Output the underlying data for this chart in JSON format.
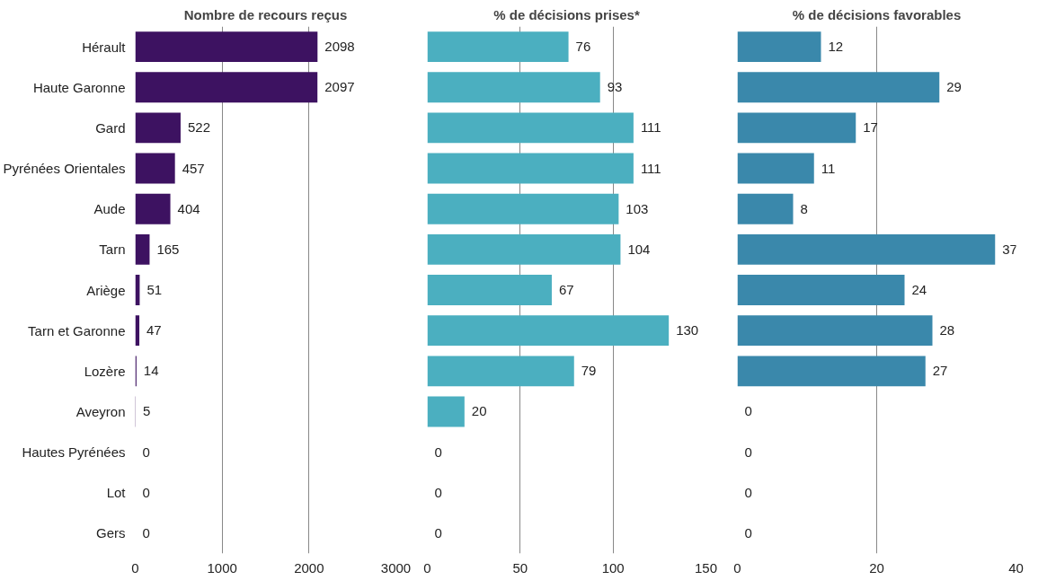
{
  "chart_data": [
    {
      "type": "bar",
      "orientation": "horizontal",
      "title": "Nombre de recours reçus",
      "categories": [
        "Hérault",
        "Haute Garonne",
        "Gard",
        "Pyrénées Orientales",
        "Aude",
        "Tarn",
        "Ariège",
        "Tarn et Garonne",
        "Lozère",
        "Aveyron",
        "Hautes Pyrénées",
        "Lot",
        "Gers"
      ],
      "values": [
        2098,
        2097,
        522,
        457,
        404,
        165,
        51,
        47,
        14,
        5,
        0,
        0,
        0
      ],
      "color": "#3d1261",
      "xlim": [
        0,
        3000
      ],
      "xticks": [
        0,
        1000,
        2000,
        3000
      ],
      "grid": "x",
      "data_labels": true
    },
    {
      "type": "bar",
      "orientation": "horizontal",
      "title": "% de décisions prises*",
      "categories": [
        null,
        null,
        null,
        null,
        null,
        null,
        null,
        null,
        null,
        null,
        null,
        null,
        null
      ],
      "values": [
        76,
        93,
        111,
        111,
        103,
        104,
        67,
        130,
        79,
        20,
        0,
        0,
        0
      ],
      "color": "#4bafc0",
      "xlim": [
        0,
        150
      ],
      "xticks": [
        0,
        50,
        100,
        150
      ],
      "grid": "x",
      "data_labels": true,
      "tick_labels": "x"
    },
    {
      "type": "bar",
      "orientation": "horizontal",
      "title": "% de décisions favorables",
      "categories": [
        null,
        null,
        null,
        null,
        null,
        null,
        null,
        null,
        null,
        null,
        null,
        null,
        null
      ],
      "values": [
        12,
        29,
        17,
        11,
        8,
        37,
        24,
        28,
        27,
        0,
        0,
        0,
        0
      ],
      "color": "#3a88ab",
      "xlim": [
        0,
        40
      ],
      "xticks": [
        0,
        20,
        40
      ],
      "grid": "x",
      "data_labels": true,
      "tick_labels": "x"
    }
  ]
}
